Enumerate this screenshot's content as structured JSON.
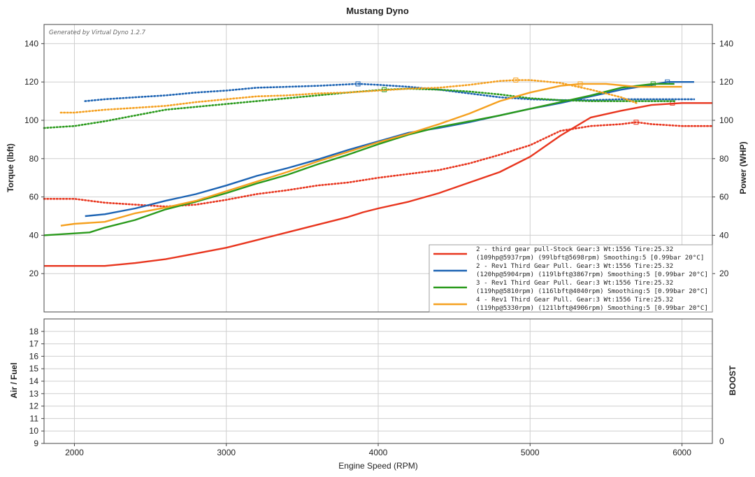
{
  "title": "Mustang Dyno",
  "generator": "Generated by Virtual Dyno 1.2.7",
  "x_label": "Engine Speed (RPM)",
  "top": {
    "left_label": "Torque (lbft)",
    "right_label": "Power (WHP)"
  },
  "bottom": {
    "left_label": "Air / Fuel",
    "right_label": "BOOST",
    "right_tick": "0"
  },
  "chart_data": [
    {
      "type": "line",
      "xlabel": "Engine Speed (RPM)",
      "ylabel": "Torque (lbft)",
      "y2label": "Power (WHP)",
      "xlim": [
        1800,
        6200
      ],
      "ylim": [
        0,
        150
      ],
      "x_ticks": [
        2000,
        3000,
        4000,
        5000,
        6000
      ],
      "y_ticks": [
        20,
        40,
        60,
        80,
        100,
        120,
        140
      ],
      "grid": true,
      "legend_position": "bottom-right",
      "series": [
        {
          "name": "2 - third gear pull-Stock",
          "legend": [
            "2 - third gear pull-Stock Gear:3 Wt:1556 Tire:25.32",
            "(109hp@5937rpm) (99lbft@5698rpm) Smoothing:5 [0.99bar 20°C]"
          ],
          "color": "#e8351e",
          "power": {
            "x": [
              1800,
              2000,
              2200,
              2400,
              2600,
              2800,
              3000,
              3200,
              3400,
              3600,
              3800,
              3900,
              4000,
              4200,
              4400,
              4600,
              4800,
              5000,
              5200,
              5400,
              5600,
              5800,
              6000,
              6200
            ],
            "y": [
              24,
              24,
              24,
              25.5,
              27.5,
              30.5,
              33.5,
              37.5,
              41.5,
              45.5,
              49.5,
              52,
              54,
              57.5,
              62,
              67.5,
              73,
              81,
              92,
              101.5,
              105,
              108,
              109,
              109
            ]
          },
          "torque": {
            "x": [
              1800,
              2000,
              2200,
              2400,
              2600,
              2800,
              3000,
              3200,
              3400,
              3600,
              3800,
              4000,
              4200,
              4400,
              4600,
              4800,
              5000,
              5200,
              5400,
              5600,
              5700,
              5800,
              6000,
              6200
            ],
            "y": [
              59,
              59,
              57,
              56,
              55,
              56,
              58.5,
              61.5,
              63.5,
              66,
              67.5,
              70,
              72,
              74,
              77.5,
              82,
              87,
              94.5,
              97,
              98,
              99,
              98,
              97,
              97
            ]
          },
          "marker_power": [
            5937,
            109
          ],
          "marker_torque": [
            5698,
            99
          ]
        },
        {
          "name": "2 - Rev1 Third Gear Pull.",
          "legend": [
            "2 - Rev1 Third Gear Pull. Gear:3 Wt:1556 Tire:25.32",
            "(120hp@5904rpm) (119lbft@3867rpm) Smoothing:5 [0.99bar 20°C]"
          ],
          "color": "#1c63b3",
          "power": {
            "x": [
              2070,
              2200,
              2400,
              2600,
              2800,
              3000,
              3200,
              3400,
              3600,
              3800,
              4000,
              4200,
              4400,
              4600,
              4800,
              5000,
              5200,
              5400,
              5600,
              5800,
              5904,
              6000,
              6080
            ],
            "y": [
              50,
              51,
              54,
              58,
              61.5,
              66,
              71,
              75,
              79.5,
              84.5,
              89,
              93.5,
              96,
              99,
              102.5,
              106,
              109,
              112.5,
              116,
              118.5,
              120,
              120,
              120
            ]
          },
          "torque": {
            "x": [
              2070,
              2200,
              2400,
              2600,
              2800,
              3000,
              3200,
              3400,
              3600,
              3867,
              4000,
              4200,
              4400,
              4600,
              4800,
              5000,
              5200,
              5400,
              5600,
              5800,
              6000,
              6080
            ],
            "y": [
              110,
              111,
              112,
              113,
              114.5,
              115.5,
              117,
              117.5,
              118,
              119,
              118.5,
              117.5,
              116,
              114,
              112,
              111,
              110.5,
              110.5,
              111,
              111,
              111,
              111
            ]
          },
          "marker_power": [
            5904,
            120
          ],
          "marker_torque": [
            3867,
            119
          ]
        },
        {
          "name": "3 - Rev1 Third Gear Pull.",
          "legend": [
            "3 - Rev1 Third Gear Pull. Gear:3 Wt:1556 Tire:25.32",
            "(119hp@5810rpm) (116lbft@4040rpm) Smoothing:5 [0.99bar 20°C]"
          ],
          "color": "#2a9a1c",
          "power": {
            "x": [
              1800,
              2000,
              2100,
              2200,
              2400,
              2600,
              2800,
              3000,
              3200,
              3400,
              3600,
              3800,
              4000,
              4200,
              4400,
              4600,
              4800,
              5000,
              5200,
              5400,
              5600,
              5810,
              5950
            ],
            "y": [
              40,
              41,
              41.5,
              44,
              48,
              53.5,
              57.5,
              62,
              67,
              71.5,
              77,
              82,
              87.5,
              92.5,
              96.5,
              99.5,
              102.5,
              106,
              109.5,
              113,
              117,
              119,
              119
            ]
          },
          "torque": {
            "x": [
              1800,
              2000,
              2200,
              2400,
              2600,
              2800,
              3000,
              3200,
              3400,
              3600,
              3800,
              4040,
              4200,
              4400,
              4600,
              4800,
              5000,
              5200,
              5400,
              5600,
              5800,
              5950
            ],
            "y": [
              96,
              97,
              99.5,
              102.5,
              105.5,
              107,
              108.5,
              110,
              111.5,
              113,
              114.5,
              116,
              116.5,
              116,
              115,
              113.5,
              111.5,
              110.5,
              110,
              110,
              110,
              110
            ]
          },
          "marker_power": [
            5810,
            119
          ],
          "marker_torque": [
            4040,
            116
          ]
        },
        {
          "name": "4 - Rev1 Third Gear Pull.",
          "legend": [
            "4 - Rev1 Third Gear Pull. Gear:3 Wt:1556 Tire:25.32",
            "(119hp@5330rpm) (121lbft@4906rpm) Smoothing:5 [0.99bar 20°C]"
          ],
          "color": "#f5a01f",
          "power": {
            "x": [
              1910,
              2000,
              2200,
              2400,
              2600,
              2800,
              3000,
              3200,
              3400,
              3600,
              3800,
              4000,
              4200,
              4400,
              4600,
              4800,
              5000,
              5200,
              5330,
              5500,
              5700,
              5900,
              6000
            ],
            "y": [
              45,
              46,
              47,
              51.5,
              54.5,
              58,
              63,
              68,
              73,
              78.5,
              83.5,
              88.5,
              93,
              98,
              103.5,
              110,
              114.5,
              118,
              119,
              119,
              117.5,
              117.5,
              117.5
            ]
          },
          "torque": {
            "x": [
              1910,
              2000,
              2200,
              2400,
              2600,
              2800,
              3000,
              3200,
              3400,
              3600,
              3800,
              4000,
              4200,
              4400,
              4600,
              4800,
              4906,
              5000,
              5200,
              5400,
              5600,
              5700
            ],
            "y": [
              104,
              104,
              105.5,
              106.5,
              107.5,
              109.5,
              111,
              112.5,
              113,
              114,
              114.5,
              115.5,
              116.5,
              117,
              118.5,
              120.5,
              121,
              121,
              119.5,
              116,
              112,
              109
            ]
          },
          "marker_power": [
            5330,
            119
          ],
          "marker_torque": [
            4906,
            121
          ]
        }
      ]
    },
    {
      "type": "line",
      "ylabel": "Air / Fuel",
      "y2label": "BOOST",
      "xlim": [
        1800,
        6200
      ],
      "ylim": [
        9,
        19
      ],
      "y_ticks": [
        9,
        10,
        11,
        12,
        13,
        14,
        15,
        16,
        17,
        18
      ],
      "y2_ticks": [
        0
      ],
      "grid": true,
      "series": []
    }
  ]
}
